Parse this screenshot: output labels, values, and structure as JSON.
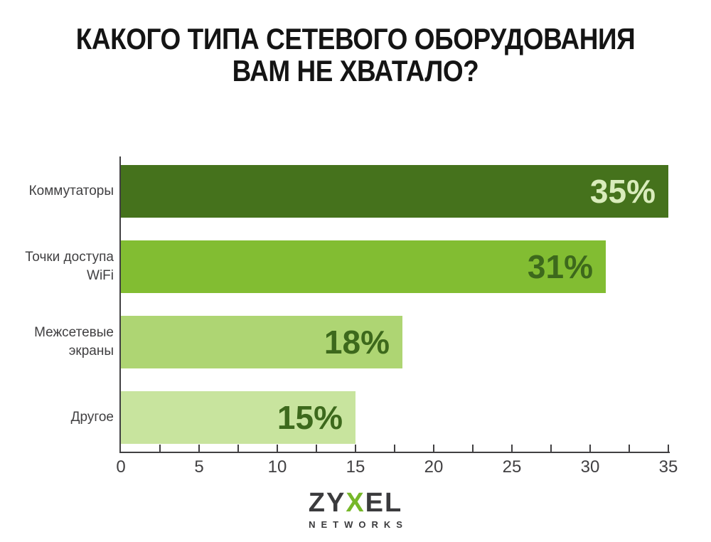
{
  "title": {
    "line1": "КАКОГО ТИПА СЕТЕВОГО ОБОРУДОВАНИЯ",
    "line2": "ВАМ НЕ ХВАТАЛО?"
  },
  "chart_data": {
    "type": "bar",
    "orientation": "horizontal",
    "title": "КАКОГО ТИПА СЕТЕВОГО ОБОРУДОВАНИЯ ВАМ НЕ ХВАТАЛО?",
    "categories": [
      "Коммутаторы",
      "Точки доступа WiFi",
      "Межсетевые экраны",
      "Другое"
    ],
    "values": [
      35,
      31,
      18,
      15
    ],
    "value_labels": [
      "35%",
      "31%",
      "18%",
      "15%"
    ],
    "xlabel": "",
    "ylabel": "",
    "xlim": [
      0,
      35
    ],
    "x_ticks": [
      0,
      5,
      10,
      15,
      20,
      25,
      30,
      35
    ],
    "minor_tick_step": 2.5,
    "grid": false,
    "legend": false,
    "bar_colors": [
      "#45721c",
      "#82bd32",
      "#aed573",
      "#c8e49e"
    ],
    "value_label_colors": [
      "#d9ecbb",
      "#3d691c",
      "#3d691c",
      "#3d691c"
    ]
  },
  "bars": [
    {
      "label_lines": [
        "Коммутаторы"
      ],
      "value": 35,
      "value_label": "35%",
      "color": "#45721c",
      "label_color": "#d9ecbb"
    },
    {
      "label_lines": [
        "Точки доступа",
        "WiFi"
      ],
      "value": 31,
      "value_label": "31%",
      "color": "#82bd32",
      "label_color": "#3d691c"
    },
    {
      "label_lines": [
        "Межсетевые",
        "экраны"
      ],
      "value": 18,
      "value_label": "18%",
      "color": "#aed573",
      "label_color": "#3d691c"
    },
    {
      "label_lines": [
        "Другое"
      ],
      "value": 15,
      "value_label": "15%",
      "color": "#c8e49e",
      "label_color": "#3d691c"
    }
  ],
  "axis": {
    "tick_labels": [
      "0",
      "5",
      "10",
      "15",
      "20",
      "25",
      "30",
      "35"
    ],
    "color": "#414042"
  },
  "logo": {
    "part1": "ZY",
    "part2": "X",
    "part3": "EL",
    "subtitle": "NETWORKS",
    "green": "#76b729",
    "dark": "#3b3b3d"
  },
  "colors": {
    "background": "#ffffff",
    "title": "#141414",
    "category_label": "#414042"
  }
}
